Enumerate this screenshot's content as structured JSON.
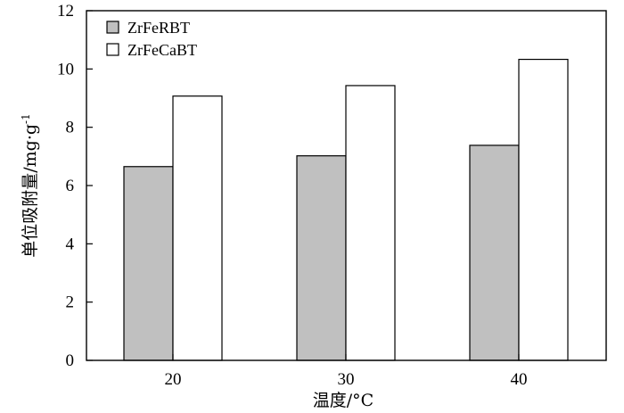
{
  "chart_data": {
    "type": "bar",
    "categories": [
      "20",
      "30",
      "40"
    ],
    "series": [
      {
        "name": "ZrFeRBT",
        "values": [
          6.65,
          7.02,
          7.38
        ],
        "color": "#c0c0c0"
      },
      {
        "name": "ZrFeCaBT",
        "values": [
          9.07,
          9.43,
          10.33
        ],
        "color": "#ffffff"
      }
    ],
    "title": "",
    "xlabel": "温度/°C",
    "ylabel": "单位吸附量/mg·g",
    "ylabel_superscript": "-1",
    "ylim": [
      0,
      12
    ],
    "yticks": [
      0,
      2,
      4,
      6,
      8,
      10,
      12
    ],
    "grid": false,
    "legend_position": "top-left"
  }
}
